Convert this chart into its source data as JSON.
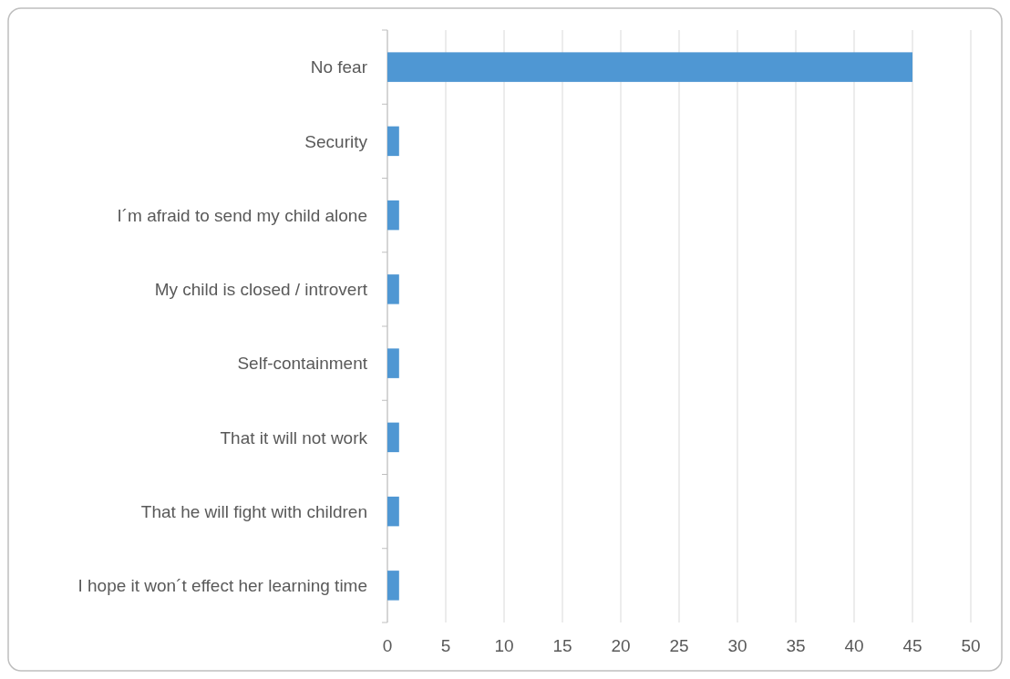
{
  "chart_data": {
    "type": "bar",
    "orientation": "horizontal",
    "categories": [
      "No fear",
      "Security",
      "I´m afraid to send my child alone",
      "My child is closed / introvert",
      "Self-containment",
      "That it will not work",
      "That he will fight with children",
      "I hope it won´t effect her learning time"
    ],
    "values": [
      45,
      1,
      1,
      1,
      1,
      1,
      1,
      1
    ],
    "color": "#4f97d3",
    "xlim": [
      0,
      50
    ],
    "xticks": [
      0,
      5,
      10,
      15,
      20,
      25,
      30,
      35,
      40,
      45,
      50
    ],
    "grid": "x"
  }
}
